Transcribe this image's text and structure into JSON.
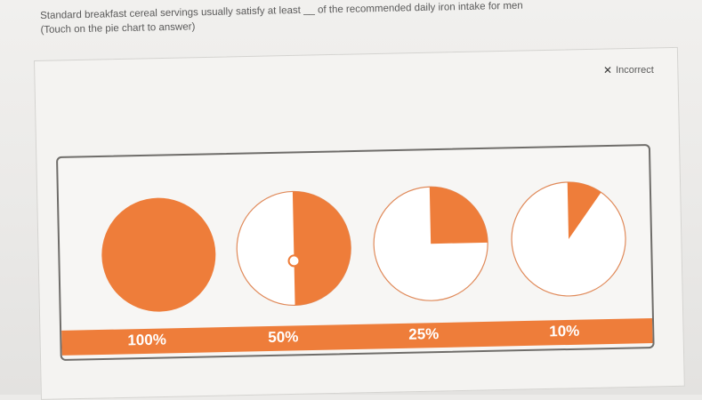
{
  "question": {
    "line1": "Standard breakfast cereal servings usually satisfy at least __ of the recommended daily iron intake for men",
    "line2": "(Touch on the pie chart to answer)"
  },
  "status": {
    "icon": "x-icon",
    "label": "Incorrect",
    "glyph": "✕"
  },
  "colors": {
    "accent": "#ee7d3a",
    "outline": "#e08a5a",
    "band": "#ee7d3a"
  },
  "options": [
    {
      "label": "100%",
      "fraction": 1.0
    },
    {
      "label": "50%",
      "fraction": 0.5,
      "selected": true
    },
    {
      "label": "25%",
      "fraction": 0.25
    },
    {
      "label": "10%",
      "fraction": 0.1
    }
  ]
}
